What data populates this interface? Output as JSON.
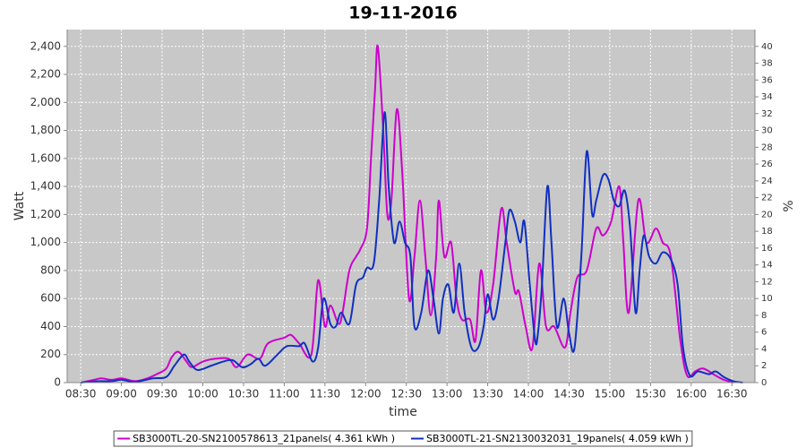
{
  "chart_data": {
    "type": "line",
    "title": "19-11-2016",
    "x_label": "time",
    "y_label": "Watt",
    "y2_label": "%",
    "xlim": [
      "08:20",
      "16:47"
    ],
    "xticks": [
      "08:30",
      "09:00",
      "09:30",
      "10:00",
      "10:30",
      "11:00",
      "11:30",
      "12:00",
      "12:30",
      "13:00",
      "13:30",
      "14:00",
      "14:30",
      "15:00",
      "15:30",
      "16:00",
      "16:30"
    ],
    "ylim": [
      0,
      2520
    ],
    "yticks": [
      0,
      200,
      400,
      600,
      800,
      {
        "value": 1000,
        "label": "1,000"
      },
      {
        "value": 1200,
        "label": "1,200"
      },
      {
        "value": 1400,
        "label": "1,400"
      },
      {
        "value": 1600,
        "label": "1,600"
      },
      {
        "value": 1800,
        "label": "1,800"
      },
      {
        "value": 2000,
        "label": "2,000"
      },
      {
        "value": 2200,
        "label": "2,200"
      },
      {
        "value": 2400,
        "label": "2,400"
      }
    ],
    "y2lim": [
      0,
      42
    ],
    "y2ticks": [
      0,
      2,
      4,
      6,
      8,
      10,
      12,
      14,
      16,
      18,
      20,
      22,
      24,
      26,
      28,
      30,
      32,
      34,
      36,
      38,
      40
    ],
    "grid": true,
    "legend": "bottom",
    "series": [
      {
        "name": "SB3000TL-20-SN2100578613_21panels( 4.361 kWh )",
        "color": "#cc00cc",
        "x": [
          "08:30",
          "08:40",
          "08:45",
          "08:53",
          "09:00",
          "09:10",
          "09:19",
          "09:26",
          "09:33",
          "09:37",
          "09:42",
          "09:48",
          "09:52",
          "10:00",
          "10:09",
          "10:19",
          "10:25",
          "10:33",
          "10:42",
          "10:48",
          "11:00",
          "11:05",
          "11:11",
          "11:20",
          "11:25",
          "11:30",
          "11:34",
          "11:40",
          "11:43",
          "11:48",
          "11:53",
          "11:56",
          "12:01",
          "12:04",
          "12:07",
          "12:09",
          "12:13",
          "12:16",
          "12:19",
          "12:23",
          "12:27",
          "12:32",
          "12:36",
          "12:40",
          "12:44",
          "12:48",
          "12:52",
          "12:54",
          "12:58",
          "13:03",
          "13:07",
          "13:11",
          "13:17",
          "13:21",
          "13:25",
          "13:29",
          "13:34",
          "13:40",
          "13:44",
          "13:50",
          "13:53",
          "13:58",
          "14:03",
          "14:08",
          "14:13",
          "14:19",
          "14:27",
          "14:31",
          "14:36",
          "14:43",
          "14:50",
          "14:55",
          "15:01",
          "15:07",
          "15:10",
          "15:14",
          "15:21",
          "15:27",
          "15:34",
          "15:39",
          "15:45",
          "15:52",
          "15:57",
          "16:03",
          "16:09",
          "16:18",
          "16:24",
          "16:31"
        ],
        "values": [
          0,
          20,
          30,
          20,
          30,
          10,
          30,
          60,
          100,
          180,
          220,
          150,
          110,
          150,
          170,
          170,
          110,
          200,
          170,
          280,
          320,
          340,
          280,
          200,
          730,
          400,
          550,
          420,
          500,
          800,
          900,
          950,
          1100,
          1600,
          2100,
          2400,
          1800,
          1200,
          1300,
          1950,
          1500,
          600,
          900,
          1300,
          900,
          480,
          900,
          1300,
          900,
          1000,
          600,
          450,
          450,
          300,
          800,
          500,
          700,
          1240,
          1000,
          650,
          650,
          400,
          250,
          850,
          400,
          400,
          250,
          500,
          750,
          800,
          1100,
          1050,
          1150,
          1400,
          1000,
          500,
          1300,
          1000,
          1100,
          1000,
          900,
          300,
          50,
          80,
          100,
          50,
          20,
          0
        ]
      },
      {
        "name": "SB3000TL-21-SN2130032031_19panels( 4.059 kWh )",
        "color": "#1030c0",
        "x": [
          "08:30",
          "08:43",
          "08:53",
          "09:00",
          "09:10",
          "09:23",
          "09:33",
          "09:39",
          "09:46",
          "09:50",
          "09:56",
          "10:06",
          "10:15",
          "10:22",
          "10:29",
          "10:35",
          "10:41",
          "10:46",
          "10:55",
          "11:02",
          "11:11",
          "11:15",
          "11:21",
          "11:25",
          "11:29",
          "11:34",
          "11:38",
          "11:42",
          "11:48",
          "11:53",
          "11:58",
          "12:01",
          "12:06",
          "12:10",
          "12:14",
          "12:17",
          "12:21",
          "12:25",
          "12:29",
          "12:33",
          "12:36",
          "12:41",
          "12:46",
          "12:50",
          "12:54",
          "12:57",
          "13:01",
          "13:05",
          "13:09",
          "13:13",
          "13:18",
          "13:23",
          "13:27",
          "13:30",
          "13:34",
          "13:38",
          "13:43",
          "13:46",
          "13:50",
          "13:54",
          "13:57",
          "14:01",
          "14:05",
          "14:07",
          "14:10",
          "14:14",
          "14:17",
          "14:21",
          "14:26",
          "14:30",
          "14:34",
          "14:39",
          "14:43",
          "14:47",
          "14:50",
          "14:55",
          "14:59",
          "15:03",
          "15:07",
          "15:11",
          "15:15",
          "15:19",
          "15:22",
          "15:25",
          "15:29",
          "15:34",
          "15:39",
          "15:45",
          "15:50",
          "15:54",
          "15:59",
          "16:05",
          "16:13",
          "16:18",
          "16:24",
          "16:31",
          "16:38"
        ],
        "values": [
          0,
          10,
          10,
          20,
          5,
          30,
          40,
          120,
          200,
          150,
          90,
          120,
          150,
          160,
          110,
          130,
          170,
          120,
          200,
          260,
          260,
          280,
          150,
          250,
          600,
          420,
          400,
          500,
          420,
          700,
          750,
          820,
          850,
          1300,
          1930,
          1400,
          1000,
          1150,
          1000,
          900,
          400,
          500,
          800,
          600,
          350,
          600,
          700,
          500,
          850,
          500,
          250,
          250,
          400,
          630,
          450,
          600,
          1000,
          1230,
          1150,
          1000,
          1150,
          700,
          300,
          350,
          700,
          1400,
          1000,
          400,
          600,
          350,
          250,
          900,
          1650,
          1200,
          1300,
          1480,
          1450,
          1300,
          1260,
          1370,
          1100,
          500,
          800,
          1050,
          900,
          850,
          930,
          880,
          700,
          250,
          50,
          80,
          60,
          80,
          40,
          10,
          0
        ]
      }
    ]
  }
}
